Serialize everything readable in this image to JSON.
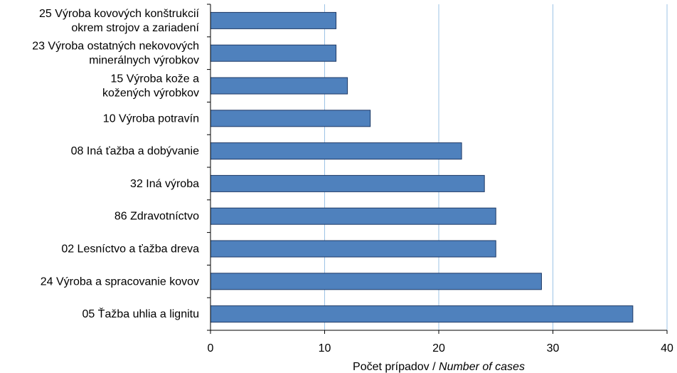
{
  "chart_data": {
    "type": "bar",
    "orientation": "horizontal",
    "categories": [
      [
        "25 Výroba kovových konštrukcií",
        "okrem strojov a zariadení"
      ],
      [
        "23 Výroba ostatných nekovových",
        "minerálnych výrobkov"
      ],
      [
        "15 Výroba kože a",
        "kožených výrobkov"
      ],
      [
        "10 Výroba potravín"
      ],
      [
        "08 Iná ťažba a dobývanie"
      ],
      [
        "32 Iná výroba"
      ],
      [
        "86 Zdravotníctvo"
      ],
      [
        "02 Lesníctvo a ťažba dreva"
      ],
      [
        "24 Výroba a spracovanie kovov"
      ],
      [
        "05 Ťažba uhlia a lignitu"
      ]
    ],
    "values": [
      11,
      11,
      12,
      14,
      22,
      24,
      25,
      25,
      29,
      37
    ],
    "xlim": [
      0,
      40
    ],
    "xticks": [
      0,
      10,
      20,
      30,
      40
    ],
    "xlabel": "Počet prípadov / ",
    "xlabel_italic": "Number of cases",
    "grid": "vertical",
    "bar_color": "#4f81bd",
    "bar_edge_color": "#1f3a66",
    "grid_color": "#9dc3e6"
  }
}
